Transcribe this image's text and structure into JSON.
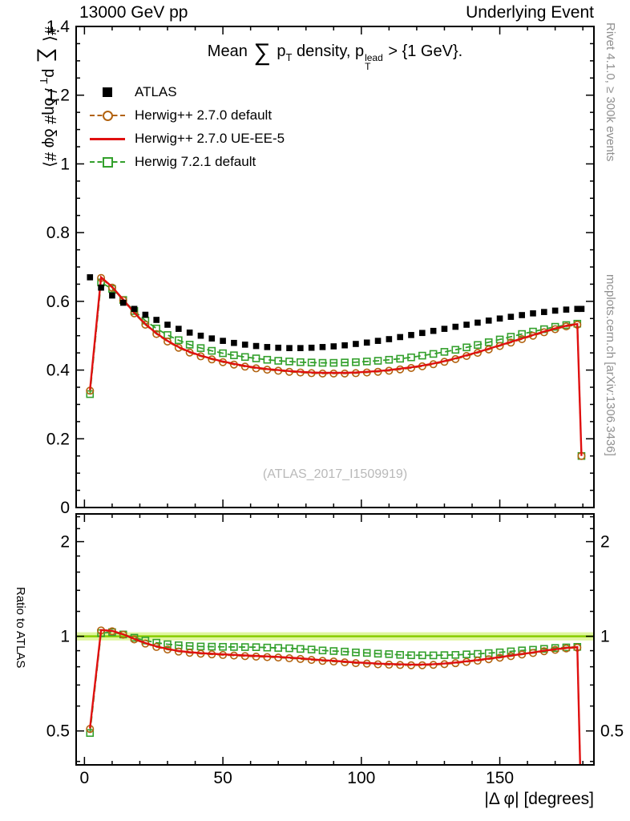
{
  "header": {
    "left": "13000 GeV pp",
    "right": "Underlying Event"
  },
  "side_notes": {
    "right_top": "Rivet 4.1.0, ≥ 300k events",
    "right_bottom": "mcplots.cern.ch [arXiv:1306.3436]"
  },
  "watermark": "(ATLAS_2017_I1509919)",
  "title_parts": {
    "t1": "Mean ",
    "sum": "∑",
    "t2": " p",
    "sub1": "T",
    "t3": " density, p",
    "sup": "lead",
    "sub2": "T",
    "t4": " > {1 GeV}."
  },
  "ylabel_parts": {
    "p1": "#⟨ ",
    "sum": "∑",
    "p2": " p",
    "sub": "T",
    "p3": " / δη# δφ #⟩"
  },
  "chart_data": {
    "type": "line",
    "title": "Mean ∑pT density, pT^lead > {1 GeV}.",
    "xlabel": "|Δ φ| [degrees]",
    "ylabel": "#⟨ ∑ pT / δη# δφ #⟩",
    "ylabel_ratio": "Ratio to ATLAS",
    "xlim": [
      -3,
      184
    ],
    "ylim_main": [
      0,
      1.4
    ],
    "ylim_ratio": [
      0.39,
      2.45
    ],
    "ratio_scale": "log",
    "grid": false,
    "legend_position": "top-left-inside",
    "xticks": {
      "major": [
        0,
        50,
        100,
        150
      ],
      "major_labels": [
        "0",
        "50",
        "100",
        "150"
      ],
      "minor_step": 10
    },
    "yticks_main": {
      "values": [
        0,
        0.2,
        0.4,
        0.6,
        0.8,
        1,
        1.2,
        1.4
      ],
      "labels": [
        "0",
        "0.2",
        "0.4",
        "0.6",
        "0.8",
        "1",
        "1.2",
        "1.4"
      ],
      "minor_step": 0.05
    },
    "yticks_ratio": {
      "values": [
        0.5,
        1,
        2
      ],
      "labels": [
        "0.5",
        "1",
        "2"
      ],
      "minor": [
        0.4,
        0.6,
        0.7,
        0.8,
        0.9,
        1.2,
        1.4,
        1.6,
        1.8,
        2.2,
        2.4
      ]
    },
    "ratio_band": {
      "low": 0.97,
      "high": 1.03,
      "line": 1,
      "band_color": "#e0f6a0",
      "line_color": "#88cc00"
    },
    "x": [
      2,
      6,
      10,
      14,
      18,
      22,
      26,
      30,
      34,
      38,
      42,
      46,
      50,
      54,
      58,
      62,
      66,
      70,
      74,
      78,
      82,
      86,
      90,
      94,
      98,
      102,
      106,
      110,
      114,
      118,
      122,
      126,
      130,
      134,
      138,
      142,
      146,
      150,
      154,
      158,
      162,
      166,
      170,
      174,
      178,
      179.5
    ],
    "series": [
      {
        "name": "ATLAS",
        "color": "#000000",
        "marker": "square-filled",
        "line": "none",
        "values": [
          0.67,
          0.64,
          0.617,
          0.596,
          0.578,
          0.561,
          0.546,
          0.532,
          0.52,
          0.509,
          0.5,
          0.492,
          0.485,
          0.479,
          0.474,
          0.47,
          0.467,
          0.465,
          0.464,
          0.464,
          0.465,
          0.467,
          0.469,
          0.472,
          0.476,
          0.48,
          0.485,
          0.49,
          0.496,
          0.502,
          0.508,
          0.514,
          0.52,
          0.526,
          0.532,
          0.538,
          0.544,
          0.55,
          0.555,
          0.56,
          0.565,
          0.569,
          0.573,
          0.576,
          0.578,
          0.578
        ]
      },
      {
        "name": "Herwig++ 2.7.0 default",
        "color": "#b26310",
        "marker": "circle-open",
        "line": "dashed",
        "values": [
          0.34,
          0.668,
          0.64,
          0.603,
          0.565,
          0.532,
          0.505,
          0.483,
          0.465,
          0.451,
          0.44,
          0.431,
          0.423,
          0.416,
          0.41,
          0.405,
          0.401,
          0.398,
          0.395,
          0.393,
          0.391,
          0.39,
          0.39,
          0.39,
          0.391,
          0.393,
          0.395,
          0.398,
          0.402,
          0.406,
          0.411,
          0.417,
          0.424,
          0.432,
          0.441,
          0.45,
          0.46,
          0.47,
          0.48,
          0.49,
          0.5,
          0.51,
          0.519,
          0.527,
          0.532,
          0.15
        ]
      },
      {
        "name": "Herwig++ 2.7.0 UE-EE-5",
        "color": "#e01010",
        "marker": "none",
        "line": "solid",
        "values": [
          0.342,
          0.67,
          0.642,
          0.605,
          0.567,
          0.534,
          0.507,
          0.485,
          0.467,
          0.453,
          0.442,
          0.433,
          0.425,
          0.418,
          0.412,
          0.407,
          0.403,
          0.4,
          0.397,
          0.395,
          0.393,
          0.392,
          0.392,
          0.392,
          0.393,
          0.395,
          0.397,
          0.4,
          0.404,
          0.408,
          0.413,
          0.419,
          0.426,
          0.434,
          0.443,
          0.452,
          0.462,
          0.472,
          0.482,
          0.492,
          0.502,
          0.512,
          0.521,
          0.529,
          0.534,
          0.15
        ]
      },
      {
        "name": "Herwig 7.2.1 default",
        "color": "#33a02c",
        "marker": "square-open",
        "line": "dashed",
        "values": [
          0.33,
          0.655,
          0.636,
          0.604,
          0.572,
          0.544,
          0.521,
          0.502,
          0.487,
          0.474,
          0.464,
          0.456,
          0.449,
          0.443,
          0.438,
          0.434,
          0.43,
          0.427,
          0.425,
          0.423,
          0.422,
          0.421,
          0.421,
          0.422,
          0.423,
          0.425,
          0.427,
          0.43,
          0.433,
          0.437,
          0.442,
          0.447,
          0.453,
          0.459,
          0.466,
          0.473,
          0.481,
          0.489,
          0.497,
          0.505,
          0.512,
          0.519,
          0.526,
          0.531,
          0.535,
          0.15
        ]
      }
    ]
  }
}
